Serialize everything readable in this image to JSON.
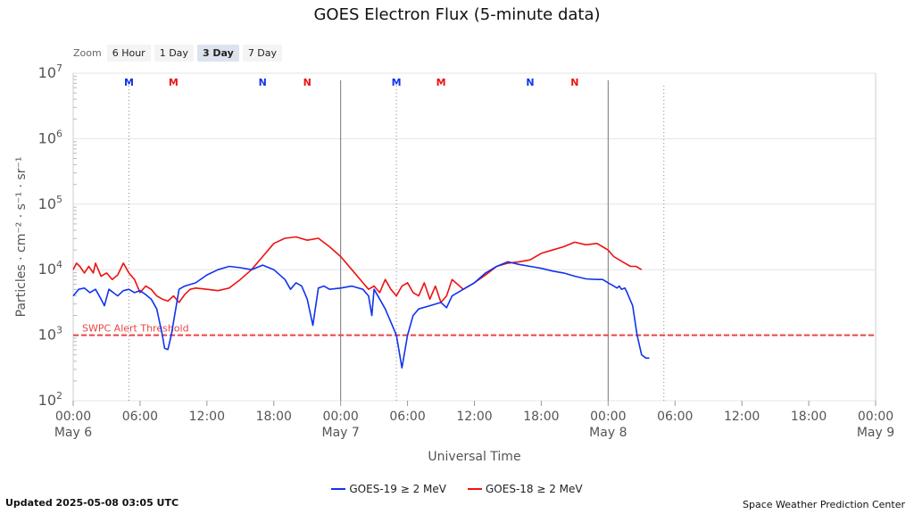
{
  "title": "GOES Electron Flux (5-minute data)",
  "zoom": {
    "label": "Zoom",
    "options": [
      "6 Hour",
      "1 Day",
      "3 Day",
      "7 Day"
    ],
    "selected": "3 Day"
  },
  "footer": {
    "updated": "Updated 2025-05-08 03:05 UTC",
    "credit": "Space Weather Prediction Center"
  },
  "colors": {
    "goes19": "#1133ee",
    "goes18": "#ee1111",
    "threshold": "#e84444"
  },
  "chart_data": {
    "type": "line",
    "title": "GOES Electron Flux (5-minute data)",
    "xlabel": "Universal Time",
    "ylabel": "Particles · cm⁻² · s⁻¹ · sr⁻¹",
    "yscale": "log",
    "ylim_exponent": [
      2,
      7
    ],
    "xlim_hours": [
      0,
      72
    ],
    "y_ticks": [
      {
        "base": "10",
        "exp": "7"
      },
      {
        "base": "10",
        "exp": "6"
      },
      {
        "base": "10",
        "exp": "5"
      },
      {
        "base": "10",
        "exp": "4"
      },
      {
        "base": "10",
        "exp": "3"
      },
      {
        "base": "10",
        "exp": "2"
      }
    ],
    "x_ticks": [
      {
        "t": 0,
        "time": "00:00",
        "date": "May 6"
      },
      {
        "t": 6,
        "time": "06:00",
        "date": ""
      },
      {
        "t": 12,
        "time": "12:00",
        "date": ""
      },
      {
        "t": 18,
        "time": "18:00",
        "date": ""
      },
      {
        "t": 24,
        "time": "00:00",
        "date": "May 7"
      },
      {
        "t": 30,
        "time": "06:00",
        "date": ""
      },
      {
        "t": 36,
        "time": "12:00",
        "date": ""
      },
      {
        "t": 42,
        "time": "18:00",
        "date": ""
      },
      {
        "t": 48,
        "time": "00:00",
        "date": "May 8"
      },
      {
        "t": 54,
        "time": "06:00",
        "date": ""
      },
      {
        "t": 60,
        "time": "12:00",
        "date": ""
      },
      {
        "t": 66,
        "time": "18:00",
        "date": ""
      },
      {
        "t": 72,
        "time": "00:00",
        "date": "May 9"
      }
    ],
    "day_boundaries": [
      24,
      48
    ],
    "noon_lines": [
      5,
      29,
      53
    ],
    "markers": [
      {
        "t": 5,
        "label": "M",
        "series": "goes19"
      },
      {
        "t": 9,
        "label": "M",
        "series": "goes18"
      },
      {
        "t": 17,
        "label": "N",
        "series": "goes19"
      },
      {
        "t": 21,
        "label": "N",
        "series": "goes18"
      },
      {
        "t": 29,
        "label": "M",
        "series": "goes19"
      },
      {
        "t": 33,
        "label": "M",
        "series": "goes18"
      },
      {
        "t": 41,
        "label": "N",
        "series": "goes19"
      },
      {
        "t": 45,
        "label": "N",
        "series": "goes18"
      }
    ],
    "threshold": {
      "value_exp": 3,
      "label": "SWPC Alert Threshold"
    },
    "series": [
      {
        "name": "GOES-19 ≥ 2 MeV",
        "key": "goes19",
        "x": [
          0,
          0.5,
          1,
          1.5,
          2,
          2.5,
          2.8,
          3.2,
          4,
          4.5,
          5,
          5.5,
          6,
          6.5,
          7,
          7.5,
          8,
          8.2,
          8.5,
          8.8,
          9,
          9.5,
          10,
          11,
          12,
          13,
          14,
          15,
          16,
          17,
          18,
          19,
          19.5,
          20,
          20.5,
          21,
          21.5,
          22,
          22.5,
          23,
          24,
          25,
          26,
          26.5,
          26.8,
          27,
          27.5,
          28,
          28.5,
          29,
          29.5,
          30,
          30.5,
          31,
          32,
          33,
          33.5,
          34,
          35,
          36,
          37,
          38,
          39,
          40,
          41,
          42,
          43,
          44,
          45,
          46,
          47,
          47.5,
          48,
          48.5,
          48.8,
          49,
          49.2,
          49.5,
          49.7,
          50.2,
          50.6,
          51,
          51.4,
          51.7
        ],
        "log_values": [
          3.6,
          3.7,
          3.72,
          3.65,
          3.7,
          3.55,
          3.45,
          3.7,
          3.6,
          3.68,
          3.7,
          3.65,
          3.68,
          3.62,
          3.55,
          3.4,
          3.0,
          2.8,
          2.78,
          3.0,
          3.2,
          3.7,
          3.75,
          3.8,
          3.92,
          4.0,
          4.05,
          4.03,
          4.0,
          4.07,
          4.0,
          3.85,
          3.7,
          3.8,
          3.75,
          3.55,
          3.15,
          3.72,
          3.75,
          3.7,
          3.72,
          3.75,
          3.7,
          3.6,
          3.3,
          3.7,
          3.55,
          3.4,
          3.2,
          3.0,
          2.5,
          3.0,
          3.3,
          3.4,
          3.45,
          3.5,
          3.42,
          3.6,
          3.7,
          3.8,
          3.95,
          4.05,
          4.12,
          4.08,
          4.05,
          4.02,
          3.98,
          3.95,
          3.9,
          3.86,
          3.85,
          3.85,
          3.8,
          3.75,
          3.72,
          3.75,
          3.7,
          3.72,
          3.65,
          3.45,
          3.0,
          2.7,
          2.65,
          2.65
        ]
      },
      {
        "name": "GOES-18 ≥ 2 MeV",
        "key": "goes18",
        "x": [
          0,
          0.3,
          0.6,
          1,
          1.4,
          1.8,
          2,
          2.5,
          3,
          3.5,
          4,
          4.5,
          5,
          5.5,
          6,
          6.5,
          7,
          7.5,
          8,
          8.5,
          9,
          9.5,
          10,
          10.5,
          11,
          12,
          13,
          14,
          15,
          16,
          17,
          18,
          19,
          20,
          21,
          22,
          23,
          24,
          25,
          26,
          26.5,
          27,
          27.5,
          28,
          28.5,
          29,
          29.5,
          30,
          30.5,
          31,
          31.5,
          32,
          32.5,
          33,
          33.5,
          34,
          35,
          36,
          37,
          38,
          39,
          40,
          41,
          42,
          43,
          44,
          45,
          46,
          47,
          47.5,
          48,
          48.5,
          49,
          49.5,
          50,
          50.5,
          51
        ],
        "log_values": [
          4.0,
          4.1,
          4.05,
          3.95,
          4.05,
          3.95,
          4.1,
          3.9,
          3.95,
          3.85,
          3.92,
          4.1,
          3.95,
          3.85,
          3.65,
          3.75,
          3.7,
          3.6,
          3.55,
          3.52,
          3.6,
          3.5,
          3.62,
          3.7,
          3.72,
          3.7,
          3.68,
          3.72,
          3.85,
          4.0,
          4.2,
          4.4,
          4.48,
          4.5,
          4.45,
          4.48,
          4.35,
          4.2,
          4.0,
          3.8,
          3.7,
          3.75,
          3.65,
          3.85,
          3.7,
          3.6,
          3.75,
          3.8,
          3.65,
          3.6,
          3.8,
          3.55,
          3.75,
          3.5,
          3.6,
          3.85,
          3.7,
          3.8,
          3.92,
          4.05,
          4.1,
          4.12,
          4.15,
          4.25,
          4.3,
          4.35,
          4.42,
          4.38,
          4.4,
          4.35,
          4.3,
          4.2,
          4.15,
          4.1,
          4.05,
          4.05,
          4.0
        ]
      }
    ]
  }
}
